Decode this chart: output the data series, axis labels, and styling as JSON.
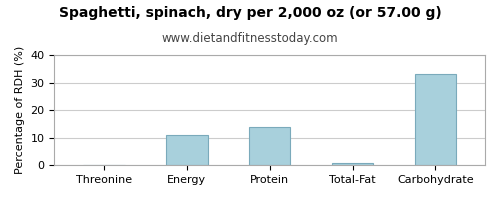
{
  "title": "Spaghetti, spinach, dry per 2,000 oz (or 57.00 g)",
  "subtitle": "www.dietandfitnesstoday.com",
  "categories": [
    "Threonine",
    "Energy",
    "Protein",
    "Total-Fat",
    "Carbohydrate"
  ],
  "values": [
    0,
    11,
    14,
    1,
    33
  ],
  "bar_color": "#a8d0dc",
  "ylabel": "Percentage of RDH (%)",
  "ylim": [
    0,
    40
  ],
  "yticks": [
    0,
    10,
    20,
    30,
    40
  ],
  "title_fontsize": 10,
  "subtitle_fontsize": 8.5,
  "ylabel_fontsize": 8,
  "xlabel_fontsize": 8,
  "background_color": "#ffffff",
  "grid_color": "#cccccc"
}
